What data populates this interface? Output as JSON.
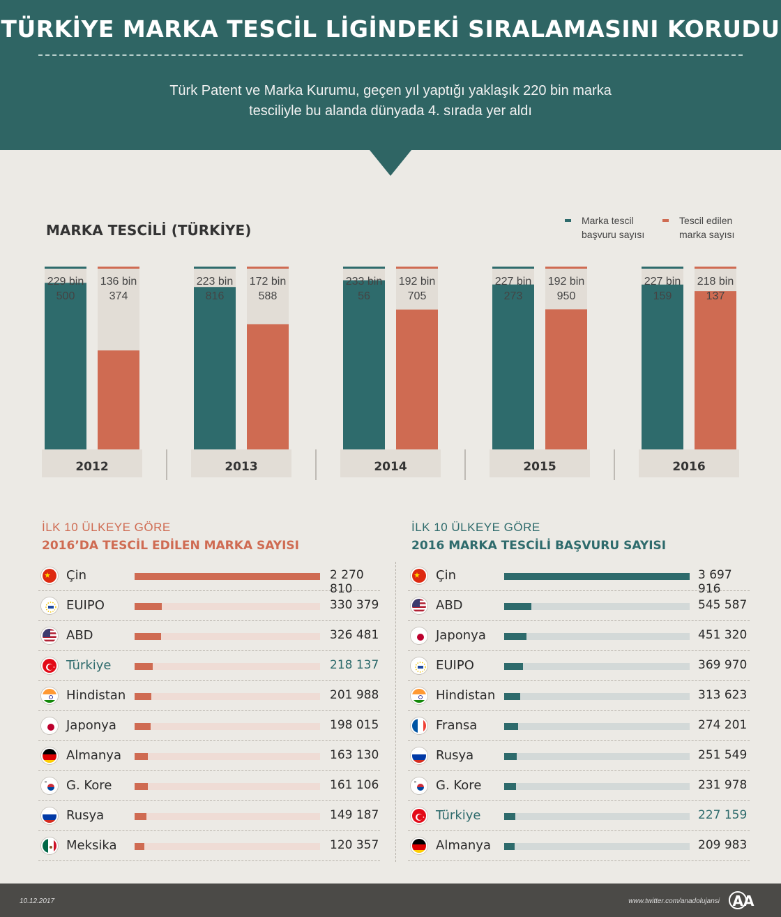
{
  "header": {
    "title": "TÜRKİYE MARKA TESCİL LİGİNDEKİ SIRALAMASINI KORUDU",
    "subtitle_line1": "Türk Patent ve Marka Kurumu, geçen yıl yaptığı yaklaşık 220 bin marka",
    "subtitle_line2": "tesciliyle bu alanda dünyada 4. sırada yer aldı"
  },
  "colors": {
    "teal": "#2e6b6c",
    "orange": "#cf6b52",
    "header_bg": "#2f6564",
    "track_orange": "#efdcd5",
    "track_teal": "#d3d9d8",
    "col_bg": "#e2ddd6"
  },
  "legend": {
    "application": [
      "Marka tescil",
      "başvuru sayısı"
    ],
    "registered": [
      "Tescil edilen",
      "marka sayısı"
    ]
  },
  "chart_data": [
    {
      "type": "bar",
      "title": "MARKA TESCİLİ (TÜRKİYE)",
      "categories": [
        "2012",
        "2013",
        "2014",
        "2015",
        "2016"
      ],
      "series": [
        {
          "name": "Marka tescil başvuru sayısı",
          "values": [
            229500,
            223816,
            233056,
            227273,
            227159
          ],
          "labels": [
            [
              "229 bin",
              "500"
            ],
            [
              "223 bin",
              "816"
            ],
            [
              "233 bin",
              "56"
            ],
            [
              "227 bin",
              "273"
            ],
            [
              "227 bin",
              "159"
            ]
          ]
        },
        {
          "name": "Tescil edilen marka sayısı",
          "values": [
            136374,
            172588,
            192705,
            192950,
            218137
          ],
          "labels": [
            [
              "136 bin",
              "374"
            ],
            [
              "172 bin",
              "588"
            ],
            [
              "192 bin",
              "705"
            ],
            [
              "192 bin",
              "950"
            ],
            [
              "218 bin",
              "137"
            ]
          ]
        }
      ],
      "ylim": [
        0,
        250000
      ]
    },
    {
      "type": "bar",
      "orientation": "horizontal",
      "heading_line1": "İLK 10 ÜLKEYE GÖRE",
      "heading_line2": "2016’DA TESCİL EDİLEN MARKA SAYISI",
      "rows": [
        {
          "country": "Çin",
          "flag": "china-flag-icon",
          "value": 2270810,
          "label": "2 270 810"
        },
        {
          "country": "EUIPO",
          "flag": "euipo-icon",
          "value": 330379,
          "label": "330 379"
        },
        {
          "country": "ABD",
          "flag": "usa-flag-icon",
          "value": 326481,
          "label": "326 481"
        },
        {
          "country": "Türkiye",
          "flag": "turkey-flag-icon",
          "value": 218137,
          "label": "218 137",
          "highlight": true
        },
        {
          "country": "Hindistan",
          "flag": "india-flag-icon",
          "value": 201988,
          "label": "201 988"
        },
        {
          "country": "Japonya",
          "flag": "japan-flag-icon",
          "value": 198015,
          "label": "198 015"
        },
        {
          "country": "Almanya",
          "flag": "germany-flag-icon",
          "value": 163130,
          "label": "163 130"
        },
        {
          "country": "G. Kore",
          "flag": "korea-flag-icon",
          "value": 161106,
          "label": "161 106"
        },
        {
          "country": "Rusya",
          "flag": "russia-flag-icon",
          "value": 149187,
          "label": "149 187"
        },
        {
          "country": "Meksika",
          "flag": "mexico-flag-icon",
          "value": 120357,
          "label": "120 357"
        }
      ]
    },
    {
      "type": "bar",
      "orientation": "horizontal",
      "heading_line1": "İLK 10 ÜLKEYE GÖRE",
      "heading_line2": "2016 MARKA TESCİLİ BAŞVURU SAYISI",
      "rows": [
        {
          "country": "Çin",
          "flag": "china-flag-icon",
          "value": 3697916,
          "label": "3 697 916"
        },
        {
          "country": "ABD",
          "flag": "usa-flag-icon",
          "value": 545587,
          "label": "545 587"
        },
        {
          "country": "Japonya",
          "flag": "japan-flag-icon",
          "value": 451320,
          "label": "451 320"
        },
        {
          "country": "EUIPO",
          "flag": "euipo-icon",
          "value": 369970,
          "label": "369 970"
        },
        {
          "country": "Hindistan",
          "flag": "india-flag-icon",
          "value": 313623,
          "label": "313 623"
        },
        {
          "country": "Fransa",
          "flag": "france-flag-icon",
          "value": 274201,
          "label": "274 201"
        },
        {
          "country": "Rusya",
          "flag": "russia-flag-icon",
          "value": 251549,
          "label": "251 549"
        },
        {
          "country": "G. Kore",
          "flag": "korea-flag-icon",
          "value": 231978,
          "label": "231 978"
        },
        {
          "country": "Türkiye",
          "flag": "turkey-flag-icon",
          "value": 227159,
          "label": "227 159",
          "highlight": true
        },
        {
          "country": "Almanya",
          "flag": "germany-flag-icon",
          "value": 209983,
          "label": "209 983"
        }
      ]
    }
  ],
  "footer": {
    "date": "10.12.2017",
    "url": "www.twitter.com/anadolujansi",
    "logo_text": "AA"
  }
}
